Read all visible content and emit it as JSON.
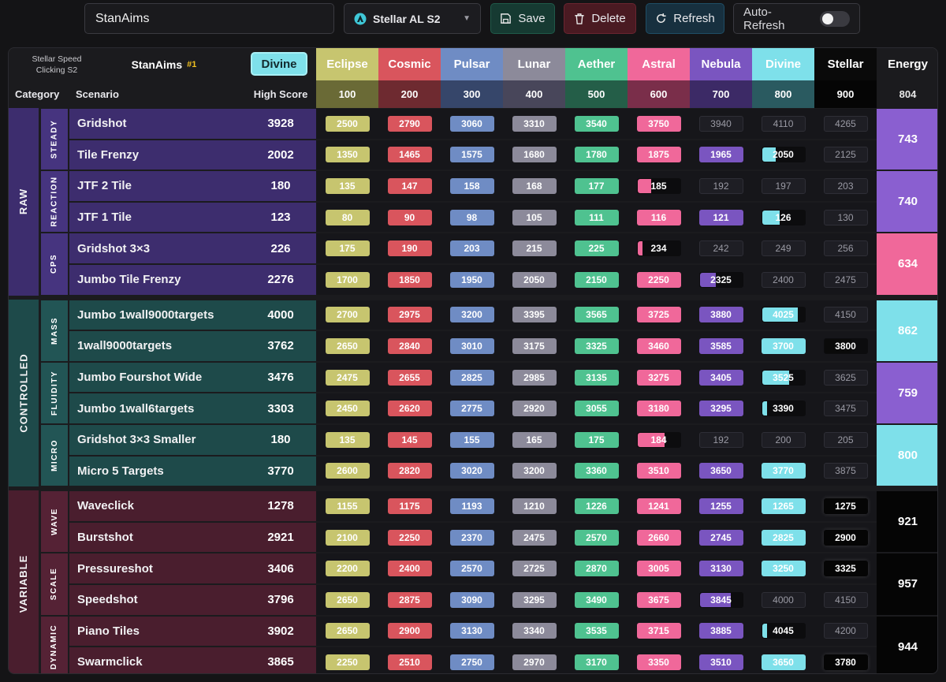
{
  "toolbar": {
    "profile_name": "StanAims",
    "preset_label": "Stellar AL S2",
    "save_label": "Save",
    "delete_label": "Delete",
    "refresh_label": "Refresh",
    "auto_refresh_label": "Auto-Refresh",
    "auto_refresh_on": false
  },
  "header": {
    "benchmark_title_line1": "Stellar Speed",
    "benchmark_title_line2": "Clicking S2",
    "player": "StanAims",
    "player_rank": "#1",
    "current_rank": "Divine",
    "current_rank_color": "#7ee0ea",
    "col_category": "Category",
    "col_scenario": "Scenario",
    "col_high_score": "High Score",
    "col_energy": "Energy",
    "total_energy": "804"
  },
  "tiers": [
    {
      "name": "Eclipse",
      "threshold": "100",
      "color": "#c7c56f",
      "dark": "#6a6a36"
    },
    {
      "name": "Cosmic",
      "threshold": "200",
      "color": "#d9555d",
      "dark": "#6e2a30"
    },
    {
      "name": "Pulsar",
      "threshold": "300",
      "color": "#6f8cc4",
      "dark": "#36466a"
    },
    {
      "name": "Lunar",
      "threshold": "400",
      "color": "#8c8a9a",
      "dark": "#48465a"
    },
    {
      "name": "Aether",
      "threshold": "500",
      "color": "#4fc290",
      "dark": "#245e48"
    },
    {
      "name": "Astral",
      "threshold": "600",
      "color": "#f0689a",
      "dark": "#7a2e4a"
    },
    {
      "name": "Nebula",
      "threshold": "700",
      "color": "#7a55c0",
      "dark": "#3c2a66"
    },
    {
      "name": "Divine",
      "threshold": "800",
      "color": "#7ee0ea",
      "dark": "#2a5a60"
    },
    {
      "name": "Stellar",
      "threshold": "900",
      "color": "#0a0a0a",
      "dark": "#050505"
    }
  ],
  "categories": [
    {
      "name": "RAW",
      "color": "#3d2d6e",
      "subs": [
        {
          "name": "STEADY",
          "energy": "743",
          "energy_color": "#8a5fd0",
          "rows": [
            {
              "scenario": "Gridshot",
              "score": "3928",
              "values": [
                "2500",
                "2790",
                "3060",
                "3310",
                "3540",
                "3750",
                "3940",
                "4110",
                "4265"
              ],
              "achieved": 6,
              "partial": 0
            },
            {
              "scenario": "Tile Frenzy",
              "score": "2002",
              "values": [
                "1350",
                "1465",
                "1575",
                "1680",
                "1780",
                "1875",
                "1965",
                "2050",
                "2125"
              ],
              "achieved": 7,
              "partial": 0.3
            }
          ]
        },
        {
          "name": "REACTION",
          "energy": "740",
          "energy_color": "#8a5fd0",
          "rows": [
            {
              "scenario": "JTF 2 Tile",
              "score": "180",
              "values": [
                "135",
                "147",
                "158",
                "168",
                "177",
                "185",
                "192",
                "197",
                "203"
              ],
              "achieved": 5,
              "partial": 0.3
            },
            {
              "scenario": "JTF 1 Tile",
              "score": "123",
              "values": [
                "80",
                "90",
                "98",
                "105",
                "111",
                "116",
                "121",
                "126",
                "130"
              ],
              "achieved": 7,
              "partial": 0.4
            }
          ]
        },
        {
          "name": "CPS",
          "energy": "634",
          "energy_color": "#f0689a",
          "rows": [
            {
              "scenario": "Gridshot 3×3",
              "score": "226",
              "values": [
                "175",
                "190",
                "203",
                "215",
                "225",
                "234",
                "242",
                "249",
                "256"
              ],
              "achieved": 5,
              "partial": 0.1
            },
            {
              "scenario": "Jumbo Tile Frenzy",
              "score": "2276",
              "values": [
                "1700",
                "1850",
                "1950",
                "2050",
                "2150",
                "2250",
                "2325",
                "2400",
                "2475"
              ],
              "achieved": 6,
              "partial": 0.35
            }
          ]
        }
      ]
    },
    {
      "name": "CONTROLLED",
      "color": "#1e4a4a",
      "subs": [
        {
          "name": "MASS",
          "energy": "862",
          "energy_color": "#7ee0ea",
          "rows": [
            {
              "scenario": "Jumbo 1wall9000targets",
              "score": "4000",
              "values": [
                "2700",
                "2975",
                "3200",
                "3395",
                "3565",
                "3725",
                "3880",
                "4025",
                "4150"
              ],
              "achieved": 7,
              "partial": 0.8
            },
            {
              "scenario": "1wall9000targets",
              "score": "3762",
              "values": [
                "2650",
                "2840",
                "3010",
                "3175",
                "3325",
                "3460",
                "3585",
                "3700",
                "3800"
              ],
              "achieved": 8,
              "partial": 0.6
            }
          ]
        },
        {
          "name": "FLUIDITY",
          "energy": "759",
          "energy_color": "#8a5fd0",
          "rows": [
            {
              "scenario": "Jumbo Fourshot Wide",
              "score": "3476",
              "values": [
                "2475",
                "2655",
                "2825",
                "2985",
                "3135",
                "3275",
                "3405",
                "3525",
                "3625"
              ],
              "achieved": 7,
              "partial": 0.6
            },
            {
              "scenario": "Jumbo 1wall6targets",
              "score": "3303",
              "values": [
                "2450",
                "2620",
                "2775",
                "2920",
                "3055",
                "3180",
                "3295",
                "3390",
                "3475"
              ],
              "achieved": 7,
              "partial": 0.1
            }
          ]
        },
        {
          "name": "MICRO",
          "energy": "800",
          "energy_color": "#7ee0ea",
          "rows": [
            {
              "scenario": "Gridshot 3×3 Smaller",
              "score": "180",
              "values": [
                "135",
                "145",
                "155",
                "165",
                "175",
                "184",
                "192",
                "200",
                "205"
              ],
              "achieved": 5,
              "partial": 0.6
            },
            {
              "scenario": "Micro 5 Targets",
              "score": "3770",
              "values": [
                "2600",
                "2820",
                "3020",
                "3200",
                "3360",
                "3510",
                "3650",
                "3770",
                "3875"
              ],
              "achieved": 8,
              "partial": 0
            }
          ]
        }
      ]
    },
    {
      "name": "VARIABLE",
      "color": "#4a1e2e",
      "subs": [
        {
          "name": "WAVE",
          "energy": "921",
          "energy_color": "#050505",
          "rows": [
            {
              "scenario": "Waveclick",
              "score": "1278",
              "values": [
                "1155",
                "1175",
                "1193",
                "1210",
                "1226",
                "1241",
                "1255",
                "1265",
                "1275"
              ],
              "achieved": 9,
              "partial": 0
            },
            {
              "scenario": "Burstshot",
              "score": "2921",
              "values": [
                "2100",
                "2250",
                "2370",
                "2475",
                "2570",
                "2660",
                "2745",
                "2825",
                "2900"
              ],
              "achieved": 9,
              "partial": 0
            }
          ]
        },
        {
          "name": "SCALE",
          "energy": "957",
          "energy_color": "#050505",
          "rows": [
            {
              "scenario": "Pressureshot",
              "score": "3406",
              "values": [
                "2200",
                "2400",
                "2570",
                "2725",
                "2870",
                "3005",
                "3130",
                "3250",
                "3325"
              ],
              "achieved": 9,
              "partial": 0
            },
            {
              "scenario": "Speedshot",
              "score": "3796",
              "values": [
                "2650",
                "2875",
                "3090",
                "3295",
                "3490",
                "3675",
                "3845",
                "4000",
                "4150"
              ],
              "achieved": 6,
              "partial": 0.7
            }
          ]
        },
        {
          "name": "DYNAMIC",
          "energy": "944",
          "energy_color": "#050505",
          "rows": [
            {
              "scenario": "Piano Tiles",
              "score": "3902",
              "values": [
                "2650",
                "2900",
                "3130",
                "3340",
                "3535",
                "3715",
                "3885",
                "4045",
                "4200"
              ],
              "achieved": 7,
              "partial": 0.1
            },
            {
              "scenario": "Swarmclick",
              "score": "3865",
              "values": [
                "2250",
                "2510",
                "2750",
                "2970",
                "3170",
                "3350",
                "3510",
                "3650",
                "3780"
              ],
              "achieved": 9,
              "partial": 0
            }
          ]
        }
      ]
    }
  ]
}
